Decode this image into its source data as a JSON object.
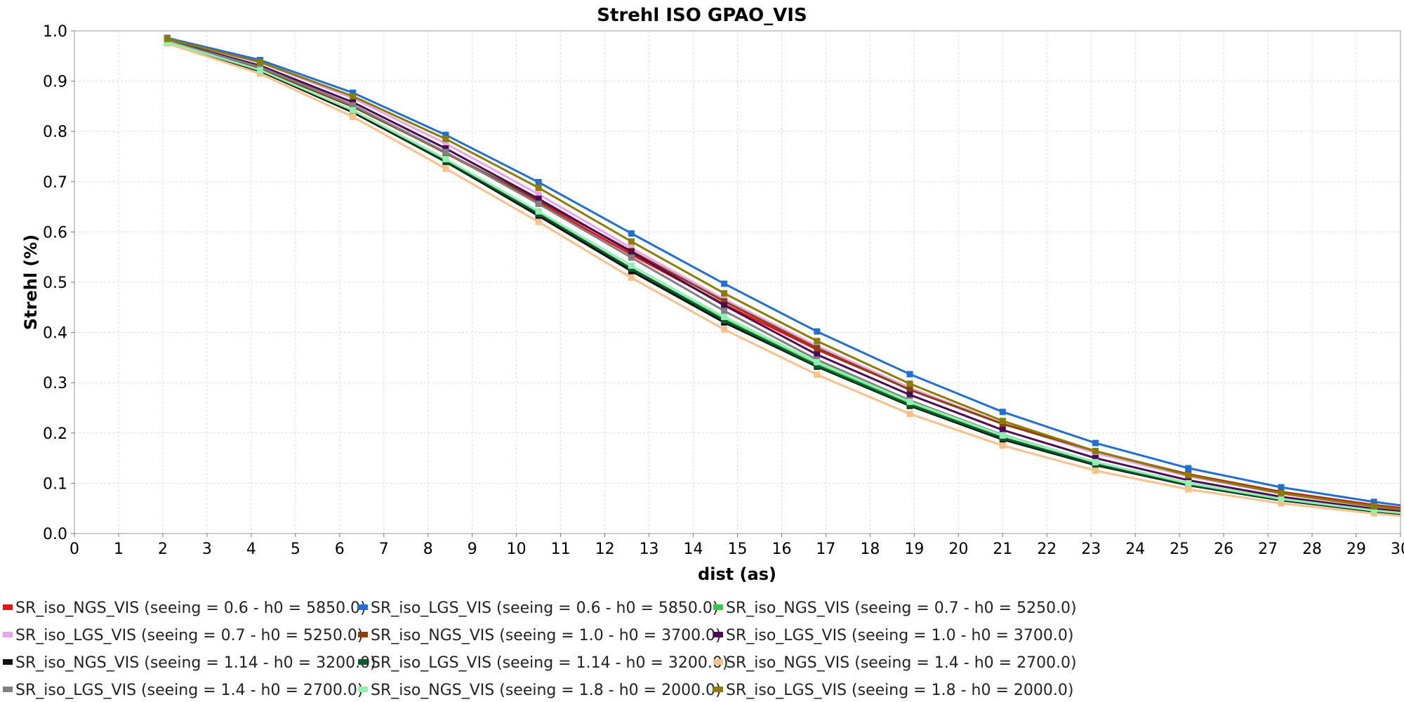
{
  "chart_data": {
    "type": "line",
    "title": "Strehl ISO GPAO_VIS",
    "xlabel": "dist (as)",
    "ylabel": "Strehl (%)",
    "xlim": [
      0,
      30
    ],
    "ylim": [
      0.0,
      1.0
    ],
    "grid": true,
    "legend_position": "bottom",
    "x_ticks": [
      "0",
      "1",
      "2",
      "3",
      "4",
      "5",
      "6",
      "7",
      "8",
      "9",
      "10",
      "11",
      "12",
      "13",
      "14",
      "15",
      "16",
      "17",
      "18",
      "19",
      "20",
      "21",
      "22",
      "23",
      "24",
      "25",
      "26",
      "27",
      "28",
      "29",
      "30"
    ],
    "y_ticks": [
      "0.0",
      "0.1",
      "0.2",
      "0.3",
      "0.4",
      "0.5",
      "0.6",
      "0.7",
      "0.8",
      "0.9",
      "1.0"
    ],
    "x": [
      2.1,
      4.2,
      6.3,
      8.4,
      10.5,
      12.6,
      14.7,
      16.8,
      18.9,
      21.0,
      23.1,
      25.2,
      27.3,
      29.4,
      30.0
    ],
    "series": [
      {
        "name": "SR_iso_NGS_VIS (seeing = 0.6 - h0 = 5850.0)",
        "color": "#ee1111",
        "values": [
          0.98,
          0.928,
          0.852,
          0.757,
          0.659,
          0.555,
          0.456,
          0.366,
          0.287,
          0.219,
          0.163,
          0.118,
          0.083,
          0.057,
          0.051
        ]
      },
      {
        "name": "SR_iso_LGS_VIS (seeing = 0.6 - h0 = 5850.0)",
        "color": "#1f6fd6",
        "values": [
          0.986,
          0.942,
          0.877,
          0.793,
          0.699,
          0.597,
          0.497,
          0.402,
          0.317,
          0.242,
          0.18,
          0.13,
          0.092,
          0.063,
          0.056
        ]
      },
      {
        "name": "SR_iso_NGS_VIS (seeing = 0.7 - h0 = 5250.0)",
        "color": "#33cc44",
        "values": [
          0.978,
          0.921,
          0.84,
          0.739,
          0.634,
          0.527,
          0.426,
          0.336,
          0.259,
          0.193,
          0.14,
          0.099,
          0.068,
          0.045,
          0.04
        ]
      },
      {
        "name": "SR_iso_LGS_VIS (seeing = 0.7 - h0 = 5250.0)",
        "color": "#e8a2ee",
        "values": [
          0.983,
          0.937,
          0.866,
          0.776,
          0.675,
          0.568,
          0.466,
          0.373,
          0.29,
          0.219,
          0.16,
          0.114,
          0.079,
          0.053,
          0.047
        ]
      },
      {
        "name": "SR_iso_NGS_VIS (seeing = 1.0 - h0 = 3700.0)",
        "color": "#8b3f10",
        "values": [
          0.979,
          0.925,
          0.849,
          0.758,
          0.663,
          0.562,
          0.462,
          0.369,
          0.286,
          0.218,
          0.164,
          0.117,
          0.082,
          0.055,
          0.049
        ]
      },
      {
        "name": "SR_iso_LGS_VIS (seeing = 1.0 - h0 = 3700.0)",
        "color": "#4a0a58",
        "values": [
          0.981,
          0.931,
          0.858,
          0.766,
          0.666,
          0.56,
          0.454,
          0.356,
          0.276,
          0.206,
          0.15,
          0.106,
          0.073,
          0.049,
          0.044
        ]
      },
      {
        "name": "SR_iso_NGS_VIS (seeing = 1.14 - h0 = 3200.0)",
        "color": "#111111",
        "values": [
          0.977,
          0.92,
          0.838,
          0.74,
          0.632,
          0.522,
          0.42,
          0.332,
          0.254,
          0.187,
          0.136,
          0.096,
          0.066,
          0.044,
          0.039
        ]
      },
      {
        "name": "SR_iso_LGS_VIS (seeing = 1.14 - h0 = 3200.0)",
        "color": "#0a5a2a",
        "values": [
          0.978,
          0.922,
          0.841,
          0.742,
          0.636,
          0.527,
          0.424,
          0.334,
          0.256,
          0.19,
          0.138,
          0.097,
          0.067,
          0.045,
          0.04
        ]
      },
      {
        "name": "SR_iso_NGS_VIS (seeing = 1.4 - h0 = 2700.0)",
        "color": "#f9c08a",
        "values": [
          0.975,
          0.915,
          0.829,
          0.726,
          0.62,
          0.509,
          0.406,
          0.316,
          0.238,
          0.175,
          0.125,
          0.088,
          0.06,
          0.04,
          0.035
        ]
      },
      {
        "name": "SR_iso_LGS_VIS (seeing = 1.4 - h0 = 2700.0)",
        "color": "#808080",
        "values": [
          0.98,
          0.928,
          0.852,
          0.759,
          0.656,
          0.549,
          0.443,
          0.346,
          0.265,
          0.196,
          0.142,
          0.1,
          0.069,
          0.046,
          0.041
        ]
      },
      {
        "name": "SR_iso_NGS_VIS (seeing = 1.8 - h0 = 2000.0)",
        "color": "#90f0b0",
        "values": [
          0.978,
          0.922,
          0.842,
          0.745,
          0.641,
          0.533,
          0.431,
          0.341,
          0.262,
          0.195,
          0.142,
          0.1,
          0.069,
          0.046,
          0.041
        ]
      },
      {
        "name": "SR_iso_LGS_VIS (seeing = 1.8 - h0 = 2000.0)",
        "color": "#8b7d00",
        "values": [
          0.984,
          0.938,
          0.87,
          0.785,
          0.688,
          0.581,
          0.478,
          0.383,
          0.298,
          0.224,
          0.164,
          0.116,
          0.08,
          0.054,
          0.048
        ]
      }
    ]
  }
}
